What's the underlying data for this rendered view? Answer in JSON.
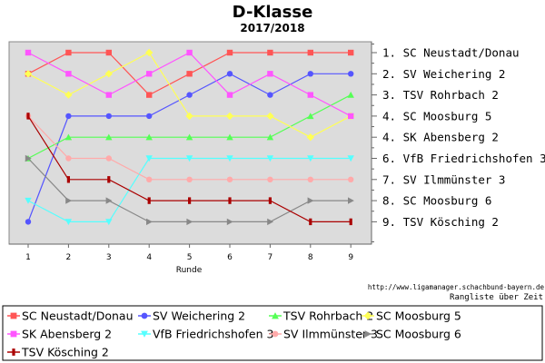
{
  "chart_data": {
    "type": "line",
    "title": "D-Klasse",
    "subtitle": "2017/2018",
    "xlabel": "Runde",
    "x": [
      1,
      2,
      3,
      4,
      5,
      6,
      7,
      8,
      9
    ],
    "ylim": [
      1,
      9
    ],
    "y_inverted": true,
    "grid": false,
    "legend_position": "bottom",
    "series": [
      {
        "name": "SC Neustadt/Donau",
        "color": "#ff5555",
        "marker": "square",
        "values": [
          2,
          1,
          1,
          3,
          2,
          1,
          1,
          1,
          1
        ]
      },
      {
        "name": "SV Weichering 2",
        "color": "#5555ff",
        "marker": "circle",
        "values": [
          9,
          4,
          4,
          4,
          3,
          2,
          3,
          2,
          2
        ]
      },
      {
        "name": "TSV Rohrbach 2",
        "color": "#55ff55",
        "marker": "triangle-up",
        "values": [
          6,
          5,
          5,
          5,
          5,
          5,
          5,
          4,
          3
        ]
      },
      {
        "name": "SC Moosburg 5",
        "color": "#ffff55",
        "marker": "diamond",
        "values": [
          2,
          3,
          2,
          1,
          4,
          4,
          4,
          5,
          4
        ]
      },
      {
        "name": "SK Abensberg 2",
        "color": "#ff55ff",
        "marker": "square",
        "values": [
          1,
          2,
          3,
          2,
          1,
          3,
          2,
          3,
          4
        ]
      },
      {
        "name": "VfB Friedrichshofen 3",
        "color": "#55ffff",
        "marker": "triangle-down",
        "values": [
          8,
          9,
          9,
          6,
          6,
          6,
          6,
          6,
          6
        ]
      },
      {
        "name": "SV Ilmmünster 3",
        "color": "#ffaaaa",
        "marker": "circle",
        "values": [
          4,
          6,
          6,
          7,
          7,
          7,
          7,
          7,
          7
        ]
      },
      {
        "name": "SC Moosburg 6",
        "color": "#888888",
        "marker": "triangle-right",
        "values": [
          6,
          8,
          8,
          9,
          9,
          9,
          9,
          8,
          8
        ]
      },
      {
        "name": "TSV Kösching 2",
        "color": "#aa0000",
        "marker": "bar",
        "values": [
          4,
          7,
          7,
          8,
          8,
          8,
          8,
          9,
          9
        ]
      }
    ],
    "final_ranking": [
      "1. SC Neustadt/Donau",
      "2. SV Weichering 2",
      "3. TSV Rohrbach 2",
      "4. SC Moosburg 5",
      "4. SK Abensberg 2",
      "6. VfB Friedrichshofen 3",
      "7. SV Ilmmünster 3",
      "8. SC Moosburg 6",
      "9. TSV Kösching 2"
    ],
    "source": "http://www.ligamanager.schachbund-bayern.de",
    "note": "Rangliste über Zeit"
  }
}
